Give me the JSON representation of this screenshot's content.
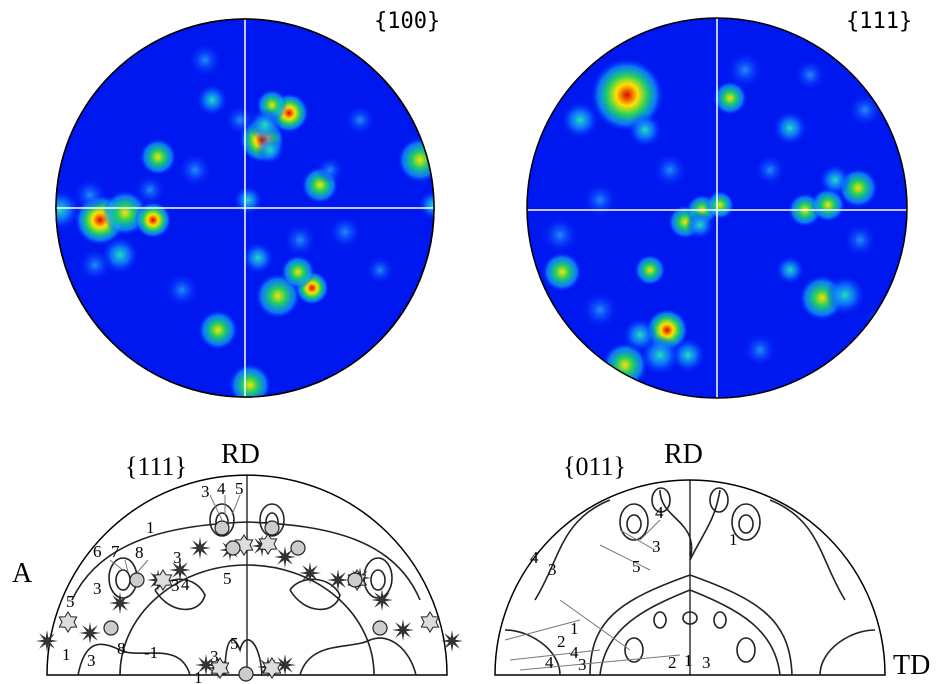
{
  "top_left": {
    "label": "{100}"
  },
  "top_right": {
    "label": "{111}"
  },
  "bottom_left": {
    "label": "{111}",
    "axis": "RD",
    "side": "A",
    "contours": [
      "3",
      "4",
      "5",
      "1",
      "6",
      "7",
      "8",
      "3",
      "3",
      "4",
      "5",
      "3",
      "5",
      "-1",
      "5",
      "3",
      "1",
      "1",
      "3",
      "8"
    ]
  },
  "bottom_right": {
    "label": "{011}",
    "axis": "RD",
    "side": "TD",
    "contours": [
      "4",
      "3",
      "5",
      "1",
      "4",
      "3",
      "1",
      "4",
      "2",
      "4",
      "3",
      "2",
      "1",
      "3"
    ]
  }
}
